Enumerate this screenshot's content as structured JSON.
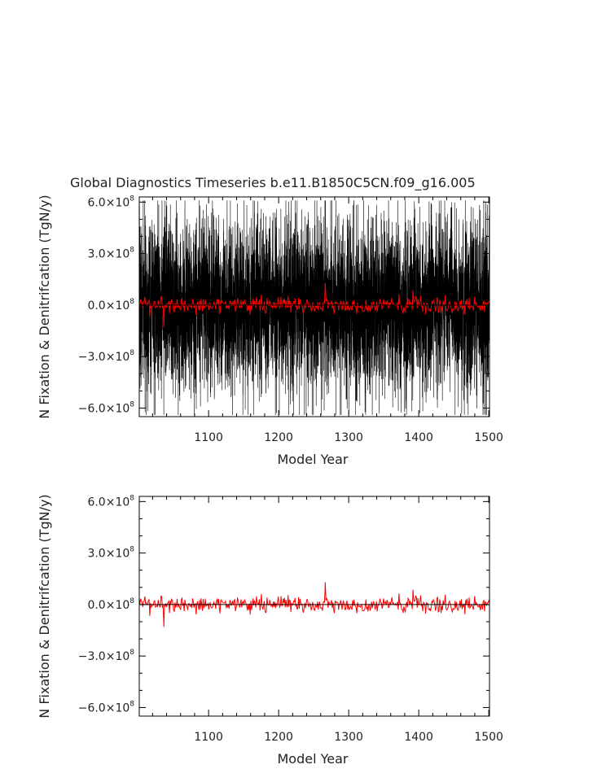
{
  "chart_data": {
    "type": "line",
    "title": "Global Diagnostics Timeseries b.e11.B1850C5CN.f09_g16.005",
    "colors": {
      "raw": "#000000",
      "smoothed": "#ff0000",
      "axis": "#000000"
    },
    "panels": [
      {
        "panel": "top",
        "xlabel": "Model Year",
        "ylabel": "N Fixation & Denitrifcation (TgN/y)",
        "xlim": [
          1001,
          1501
        ],
        "ylim": [
          -650000000.0,
          630000000.0
        ],
        "xticks": [
          1100,
          1200,
          1300,
          1400,
          1500
        ],
        "xtick_labels": [
          "1100",
          "1200",
          "1300",
          "1400",
          "1500"
        ],
        "yticks": [
          -600000000.0,
          -300000000.0,
          0,
          300000000.0,
          600000000.0
        ],
        "ytick_labels": [
          {
            "mant": "−6.0×10",
            "exp": "8"
          },
          {
            "mant": "−3.0×10",
            "exp": "8"
          },
          {
            "mant": "0.0×10",
            "exp": "8"
          },
          {
            "mant": "3.0×10",
            "exp": "8"
          },
          {
            "mant": "6.0×10",
            "exp": "8"
          }
        ],
        "zero_line": true,
        "series": [
          {
            "kind": "monthly",
            "color": "#000000",
            "amplitude": 450000000.0,
            "peak": 610000000.0,
            "trough": -640000000.0,
            "points": 6000
          },
          {
            "kind": "annual",
            "color": "#ff0000",
            "amplitude": 45000000.0,
            "peak": 130000000.0,
            "trough": -130000000.0,
            "points": 500
          }
        ]
      },
      {
        "panel": "bottom",
        "xlabel": "Model Year",
        "ylabel": "N Fixation & Denitrifcation (TgN/y)",
        "xlim": [
          1001,
          1501
        ],
        "ylim": [
          -650000000.0,
          630000000.0
        ],
        "xticks": [
          1100,
          1200,
          1300,
          1400,
          1500
        ],
        "xtick_labels": [
          "1100",
          "1200",
          "1300",
          "1400",
          "1500"
        ],
        "yticks": [
          -600000000.0,
          -300000000.0,
          0,
          300000000.0,
          600000000.0
        ],
        "ytick_labels": [
          {
            "mant": "−6.0×10",
            "exp": "8"
          },
          {
            "mant": "−3.0×10",
            "exp": "8"
          },
          {
            "mant": "0.0×10",
            "exp": "8"
          },
          {
            "mant": "3.0×10",
            "exp": "8"
          },
          {
            "mant": "6.0×10",
            "exp": "8"
          }
        ],
        "zero_line": true,
        "series": [
          {
            "kind": "annual",
            "color": "#ff0000",
            "amplitude": 45000000.0,
            "peak": 130000000.0,
            "trough": -130000000.0,
            "points": 500
          }
        ]
      }
    ]
  }
}
